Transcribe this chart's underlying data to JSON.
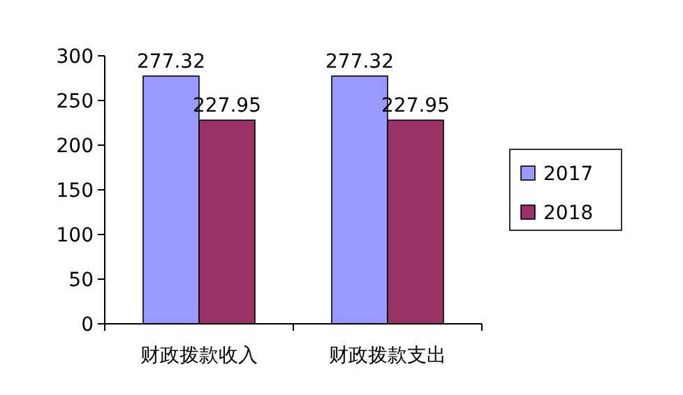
{
  "chart_data": {
    "type": "bar",
    "categories": [
      "财政拨款收入",
      "财政拨款支出"
    ],
    "series": [
      {
        "name": "2017",
        "color": "#9999ff",
        "values": [
          277.32,
          277.32
        ]
      },
      {
        "name": "2018",
        "color": "#993366",
        "values": [
          227.95,
          227.95
        ]
      }
    ],
    "ylim": [
      0,
      300
    ],
    "yticks": [
      0,
      50,
      100,
      150,
      200,
      250,
      300
    ],
    "data_labels": true,
    "legend": "right",
    "grid": false
  }
}
